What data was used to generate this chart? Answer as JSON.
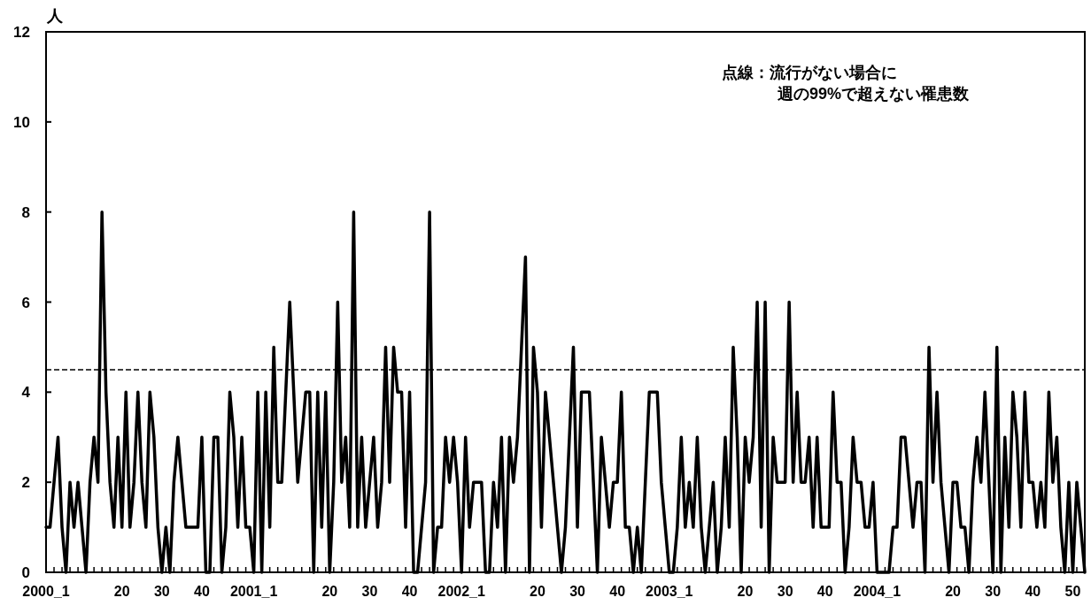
{
  "chart_data": {
    "type": "line",
    "ylabel": "人",
    "annotations": [
      "点線：流行がない場合に",
      "週の99%で超えない罹患数"
    ],
    "categories": [
      "2000_1",
      null,
      null,
      null,
      null,
      null,
      null,
      null,
      null,
      null,
      null,
      null,
      null,
      null,
      null,
      null,
      null,
      null,
      null,
      "20",
      null,
      null,
      null,
      null,
      null,
      null,
      null,
      null,
      null,
      "30",
      null,
      null,
      null,
      null,
      null,
      null,
      null,
      null,
      null,
      "40",
      null,
      null,
      null,
      null,
      null,
      null,
      null,
      null,
      null,
      null,
      null,
      null,
      "2001_1",
      null,
      null,
      null,
      null,
      null,
      null,
      null,
      null,
      null,
      null,
      null,
      null,
      null,
      null,
      null,
      null,
      null,
      null,
      "20",
      null,
      null,
      null,
      null,
      null,
      null,
      null,
      null,
      null,
      "30",
      null,
      null,
      null,
      null,
      null,
      null,
      null,
      null,
      null,
      "40",
      null,
      null,
      null,
      null,
      null,
      null,
      null,
      null,
      null,
      null,
      null,
      null,
      "2002_1",
      null,
      null,
      null,
      null,
      null,
      null,
      null,
      null,
      null,
      null,
      null,
      null,
      null,
      null,
      null,
      null,
      null,
      null,
      "20",
      null,
      null,
      null,
      null,
      null,
      null,
      null,
      null,
      null,
      "30",
      null,
      null,
      null,
      null,
      null,
      null,
      null,
      null,
      null,
      "40",
      null,
      null,
      null,
      null,
      null,
      null,
      null,
      null,
      null,
      null,
      null,
      null,
      "2003_1",
      null,
      null,
      null,
      null,
      null,
      null,
      null,
      null,
      null,
      null,
      null,
      null,
      null,
      null,
      null,
      null,
      null,
      null,
      "20",
      null,
      null,
      null,
      null,
      null,
      null,
      null,
      null,
      null,
      "30",
      null,
      null,
      null,
      null,
      null,
      null,
      null,
      null,
      null,
      "40",
      null,
      null,
      null,
      null,
      null,
      null,
      null,
      null,
      null,
      null,
      null,
      null,
      "2004_1",
      null,
      null,
      null,
      null,
      null,
      null,
      null,
      null,
      null,
      null,
      null,
      null,
      null,
      null,
      null,
      null,
      null,
      null,
      "20",
      null,
      null,
      null,
      null,
      null,
      null,
      null,
      null,
      null,
      "30",
      null,
      null,
      null,
      null,
      null,
      null,
      null,
      null,
      null,
      "40",
      null,
      null,
      null,
      null,
      null,
      null,
      null,
      null,
      null,
      "50",
      null,
      null,
      null
    ],
    "series": [
      {
        "color": "#000000",
        "values": [
          1,
          1,
          2,
          3,
          1,
          0,
          2,
          1,
          2,
          1,
          0,
          2,
          3,
          2,
          8,
          4,
          2,
          1,
          3,
          1,
          4,
          1,
          2,
          4,
          2,
          1,
          4,
          3,
          1,
          0,
          1,
          0,
          2,
          3,
          2,
          1,
          1,
          1,
          1,
          3,
          0,
          0,
          3,
          3,
          0,
          1,
          4,
          3,
          1,
          3,
          1,
          1,
          0,
          4,
          0,
          4,
          1,
          5,
          2,
          2,
          4,
          6,
          4,
          2,
          3,
          4,
          4,
          0,
          4,
          1,
          4,
          0,
          2,
          6,
          2,
          3,
          1,
          8,
          1,
          3,
          1,
          2,
          3,
          1,
          2,
          5,
          2,
          5,
          4,
          4,
          1,
          4,
          0,
          0,
          1,
          2,
          8,
          0,
          1,
          1,
          3,
          2,
          3,
          2,
          0,
          3,
          1,
          2,
          2,
          2,
          0,
          0,
          2,
          1,
          3,
          0,
          3,
          2,
          3,
          5,
          7,
          0,
          5,
          4,
          1,
          4,
          3,
          2,
          1,
          0,
          1,
          3,
          5,
          1,
          4,
          4,
          4,
          2,
          0,
          3,
          2,
          1,
          2,
          2,
          4,
          1,
          1,
          0,
          1,
          0,
          2,
          4,
          4,
          4,
          2,
          1,
          0,
          0,
          1,
          3,
          1,
          2,
          1,
          3,
          1,
          0,
          1,
          2,
          0,
          1,
          3,
          1,
          5,
          3,
          0,
          3,
          2,
          3,
          6,
          1,
          6,
          0,
          3,
          2,
          2,
          2,
          6,
          2,
          4,
          2,
          2,
          3,
          1,
          3,
          1,
          1,
          1,
          4,
          2,
          2,
          0,
          1,
          3,
          2,
          2,
          1,
          1,
          2,
          0,
          0,
          0,
          0,
          1,
          1,
          3,
          3,
          2,
          1,
          2,
          2,
          0,
          5,
          2,
          4,
          2,
          1,
          0,
          2,
          2,
          1,
          1,
          0,
          2,
          3,
          2,
          4,
          2,
          0,
          5,
          0,
          3,
          1,
          4,
          3,
          1,
          4,
          2,
          2,
          1,
          2,
          1,
          4,
          2,
          3,
          1,
          0,
          2,
          0,
          2,
          1,
          0
        ]
      }
    ],
    "ylim": [
      0,
      12
    ],
    "yticks": [
      0,
      2,
      4,
      6,
      8,
      10,
      12
    ],
    "ref_lines": [
      {
        "axis": "y",
        "value": 4.5,
        "line_style": "dashed"
      }
    ],
    "grid": false,
    "marker": "none",
    "line_style": "solid"
  }
}
